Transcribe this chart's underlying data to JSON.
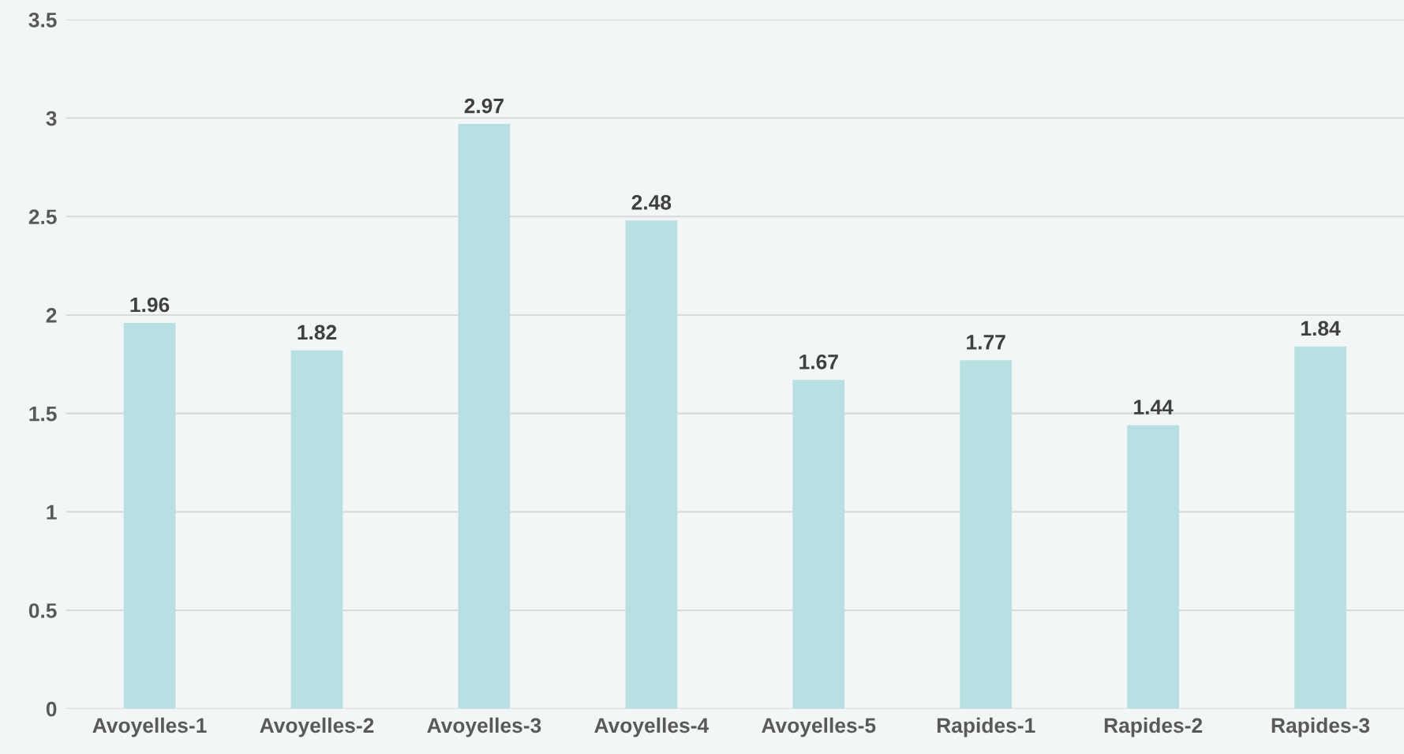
{
  "chart_data": {
    "type": "bar",
    "categories": [
      "Avoyelles-1",
      "Avoyelles-2",
      "Avoyelles-3",
      "Avoyelles-4",
      "Avoyelles-5",
      "Rapides-1",
      "Rapides-2",
      "Rapides-3"
    ],
    "values": [
      1.96,
      1.82,
      2.97,
      2.48,
      1.67,
      1.77,
      1.44,
      1.84
    ],
    "color": "#b8dfe1",
    "ylim": [
      0,
      3.5
    ],
    "yticks": [
      0,
      0.5,
      1,
      1.5,
      2,
      2.5,
      3,
      3.5
    ],
    "grid": "y",
    "data_labels": true
  }
}
